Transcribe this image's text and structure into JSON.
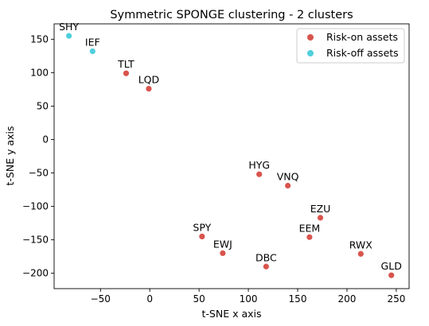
{
  "chart_data": {
    "type": "scatter",
    "title": "Symmetric SPONGE clustering - 2 clusters",
    "xlabel": "t-SNE x axis",
    "ylabel": "t-SNE y axis",
    "xlim": [
      -97,
      263
    ],
    "ylim": [
      -223,
      173
    ],
    "xticks": [
      -50,
      0,
      50,
      100,
      150,
      200,
      250
    ],
    "yticks": [
      -200,
      -150,
      -100,
      -50,
      0,
      50,
      100,
      150
    ],
    "grid": false,
    "legend_position": "top-right",
    "series": [
      {
        "name": "Risk-on assets",
        "color": "#d9544d",
        "points": [
          {
            "label": "TLT",
            "x": -24,
            "y": 99
          },
          {
            "label": "LQD",
            "x": -1,
            "y": 76
          },
          {
            "label": "HYG",
            "x": 111,
            "y": -52
          },
          {
            "label": "VNQ",
            "x": 140,
            "y": -69
          },
          {
            "label": "EZU",
            "x": 173,
            "y": -117
          },
          {
            "label": "EEM",
            "x": 162,
            "y": -146
          },
          {
            "label": "SPY",
            "x": 53,
            "y": -145
          },
          {
            "label": "EWJ",
            "x": 74,
            "y": -170
          },
          {
            "label": "DBC",
            "x": 118,
            "y": -190
          },
          {
            "label": "RWX",
            "x": 214,
            "y": -171
          },
          {
            "label": "GLD",
            "x": 245,
            "y": -203
          }
        ]
      },
      {
        "name": "Risk-off assets",
        "color": "#4fcfdc",
        "points": [
          {
            "label": "SHY",
            "x": -82,
            "y": 155
          },
          {
            "label": "IEF",
            "x": -58,
            "y": 132
          }
        ]
      }
    ]
  }
}
